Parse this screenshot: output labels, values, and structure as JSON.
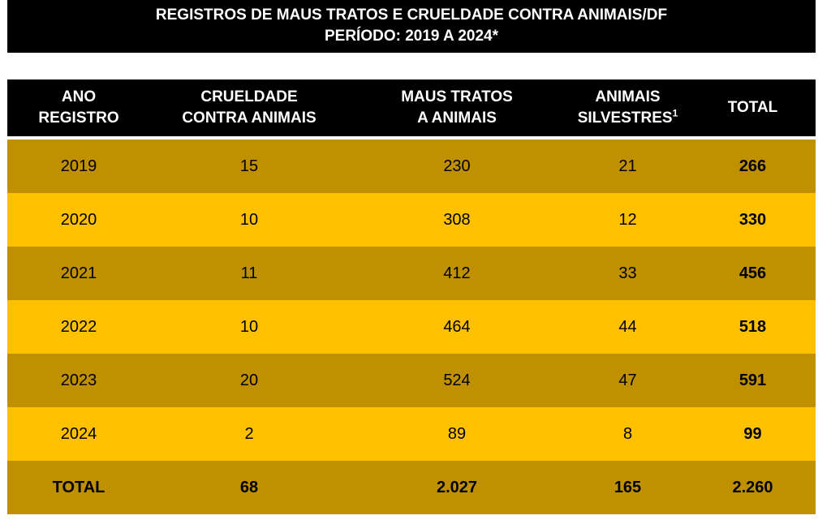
{
  "title": {
    "line1": "REGISTROS DE MAUS TRATOS E CRUELDADE CONTRA ANIMAIS/DF",
    "line2": "PERÍODO: 2019 A 2024*"
  },
  "colors": {
    "header_bg": "#000000",
    "row_dark": "#bf9000",
    "row_light": "#ffc000"
  },
  "table": {
    "headers": [
      {
        "line1": "ANO",
        "line2": "REGISTRO",
        "sup": ""
      },
      {
        "line1": "CRUELDADE",
        "line2": "CONTRA ANIMAIS",
        "sup": ""
      },
      {
        "line1": "MAUS TRATOS",
        "line2": "A ANIMAIS",
        "sup": ""
      },
      {
        "line1": "ANIMAIS",
        "line2": "SILVESTRES",
        "sup": "1"
      },
      {
        "line1": "TOTAL",
        "line2": "",
        "sup": ""
      }
    ],
    "rows": [
      [
        "2019",
        "15",
        "230",
        "21",
        "266"
      ],
      [
        "2020",
        "10",
        "308",
        "12",
        "330"
      ],
      [
        "2021",
        "11",
        "412",
        "33",
        "456"
      ],
      [
        "2022",
        "10",
        "464",
        "44",
        "518"
      ],
      [
        "2023",
        "20",
        "524",
        "47",
        "591"
      ],
      [
        "2024",
        "2",
        "89",
        "8",
        "99"
      ]
    ],
    "total_row": [
      "TOTAL",
      "68",
      "2.027",
      "165",
      "2.260"
    ]
  }
}
